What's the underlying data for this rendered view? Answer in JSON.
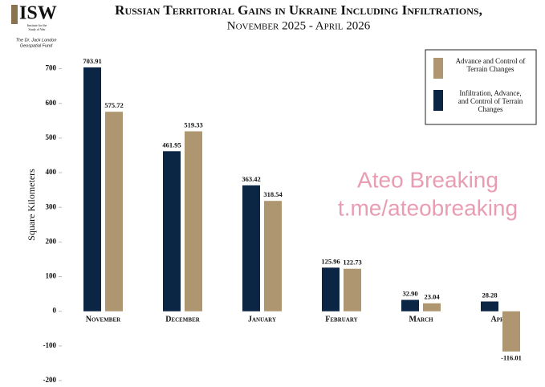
{
  "chart_data": {
    "type": "bar",
    "logo": {
      "mark": "ISW",
      "line1": "Institute for the",
      "line2": "Study of War",
      "fund1": "The Dr. Jack London",
      "fund2": "Geospatial Fund"
    },
    "title": "Russian Territorial Gains in Ukraine Including Infiltrations,",
    "subtitle": "November 2025 - April 2026",
    "y_label": "Square Kilometers",
    "watermark": [
      "Ateo Breaking",
      "t.me/ateobreaking"
    ],
    "categories": [
      "November",
      "December",
      "January",
      "February",
      "March",
      "April"
    ],
    "series": [
      {
        "name": "Infiltration, Advance, and Control of Terrain Changes",
        "color": "#0b2545",
        "values": [
          703.91,
          461.95,
          363.42,
          125.96,
          32.9,
          28.28
        ],
        "value_labels": [
          "703.91",
          "461.95",
          "363.42",
          "125.96",
          "32.90",
          "28.28"
        ]
      },
      {
        "name": "Advance and Control of Terrain Changes",
        "color": "#ad9670",
        "values": [
          575.72,
          519.33,
          318.54,
          122.73,
          23.04,
          -116.01
        ],
        "value_labels": [
          "575.72",
          "519.33",
          "318.54",
          "122.73",
          "23.04",
          "-116.01"
        ]
      }
    ],
    "ylim": [
      -200,
      750
    ],
    "yticks": [
      -200,
      -100,
      0,
      100,
      200,
      300,
      400,
      500,
      600,
      700
    ],
    "legend": "top-right"
  }
}
